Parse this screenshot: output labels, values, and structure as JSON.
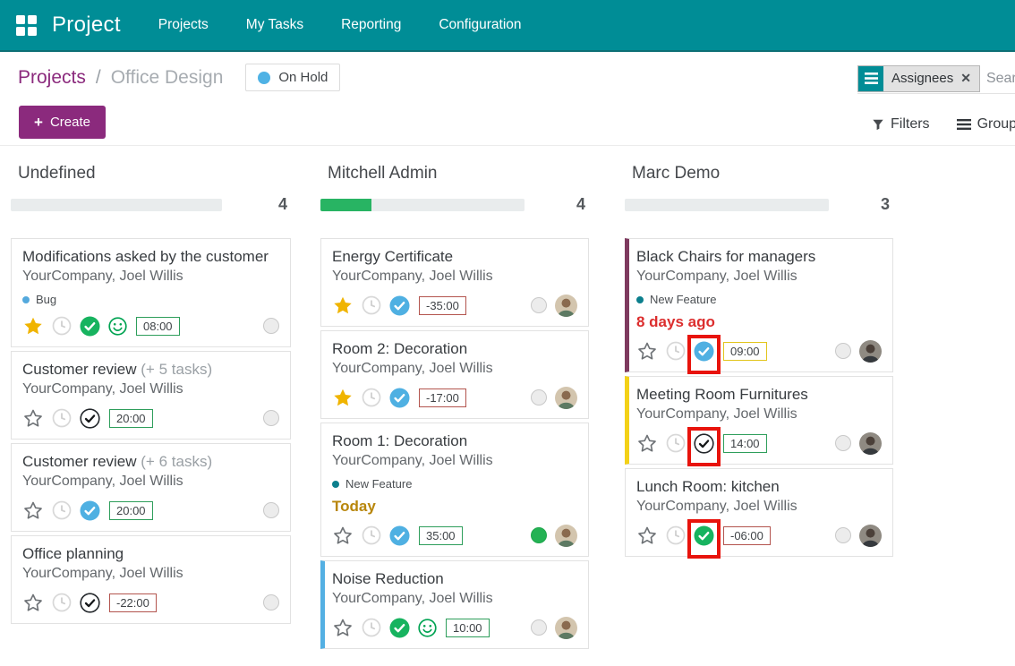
{
  "app": {
    "brand": "Project"
  },
  "nav_items": [
    "Projects",
    "My Tasks",
    "Reporting",
    "Configuration"
  ],
  "breadcrumb": {
    "parent": "Projects",
    "separator": "/",
    "current": "Office Design"
  },
  "status_badge": {
    "label": "On Hold",
    "dot_color": "#4fb2e5"
  },
  "controls": {
    "create": "Create",
    "plus": "+",
    "filters": "Filters",
    "group_by": "Group By",
    "search_facet": "Assignees",
    "facet_close": "✕",
    "search_placeholder": "Search..."
  },
  "columns": [
    {
      "title": "Undefined",
      "count": "4",
      "progress_pct": 0,
      "cards": [
        {
          "title": "Modifications asked by the customer",
          "subtitle": "YourCompany, Joel Willis",
          "tag": {
            "label": "Bug",
            "dot": "#54a9dd"
          },
          "star": "filled",
          "check": "green",
          "smiley": true,
          "time": {
            "value": "08:00",
            "style": "green"
          },
          "state": "gray"
        },
        {
          "title": "Customer review",
          "suffix": "(+ 5 tasks)",
          "subtitle": "YourCompany, Joel Willis",
          "star": "outline",
          "check": "black",
          "time": {
            "value": "20:00",
            "style": "green"
          },
          "state": "gray"
        },
        {
          "title": "Customer review",
          "suffix": "(+ 6 tasks)",
          "subtitle": "YourCompany, Joel Willis",
          "star": "outline",
          "check": "blue",
          "time": {
            "value": "20:00",
            "style": "green"
          },
          "state": "gray"
        },
        {
          "title": "Office planning",
          "subtitle": "YourCompany, Joel Willis",
          "star": "outline",
          "check": "black",
          "time": {
            "value": "-22:00",
            "style": "red"
          },
          "state": "gray"
        }
      ]
    },
    {
      "title": "Mitchell Admin",
      "count": "4",
      "progress_pct": 25,
      "cards": [
        {
          "title": "Energy Certificate",
          "subtitle": "YourCompany, Joel Willis",
          "star": "filled",
          "check": "blue",
          "time": {
            "value": "-35:00",
            "style": "red"
          },
          "state": "gray",
          "avatar": "light"
        },
        {
          "title": "Room 2: Decoration",
          "subtitle": "YourCompany, Joel Willis",
          "star": "filled",
          "check": "blue",
          "time": {
            "value": "-17:00",
            "style": "red"
          },
          "state": "gray",
          "avatar": "light"
        },
        {
          "title": "Room 1: Decoration",
          "subtitle": "YourCompany, Joel Willis",
          "tag": {
            "label": "New Feature",
            "dot": "#0c7f8d"
          },
          "date": {
            "text": "Today",
            "color": "#b8860b"
          },
          "star": "outline",
          "check": "blue",
          "time": {
            "value": "35:00",
            "style": "green"
          },
          "state": "green",
          "avatar": "light"
        },
        {
          "title": "Noise Reduction",
          "subtitle": "YourCompany, Joel Willis",
          "left_border": "#54b0e3",
          "star": "outline",
          "check": "green",
          "smiley": true,
          "time": {
            "value": "10:00",
            "style": "green"
          },
          "state": "gray",
          "avatar": "light"
        }
      ]
    },
    {
      "title": "Marc Demo",
      "count": "3",
      "progress_pct": 0,
      "cards": [
        {
          "title": "Black Chairs for managers",
          "subtitle": "YourCompany, Joel Willis",
          "left_border": "#7e3a5f",
          "tag": {
            "label": "New Feature",
            "dot": "#0c7f8d"
          },
          "date": {
            "text": "8 days ago",
            "color": "#dc2e2e"
          },
          "star": "outline",
          "check": "blue",
          "highlight": true,
          "time": {
            "value": "09:00",
            "style": "yellow"
          },
          "state": "gray",
          "avatar": "dark"
        },
        {
          "title": "Meeting Room Furnitures",
          "subtitle": "YourCompany, Joel Willis",
          "left_border": "#f3d118",
          "star": "outline",
          "check": "black",
          "highlight": true,
          "time": {
            "value": "14:00",
            "style": "green"
          },
          "state": "gray",
          "avatar": "dark"
        },
        {
          "title": "Lunch Room: kitchen",
          "subtitle": "YourCompany, Joel Willis",
          "star": "outline",
          "check": "green",
          "highlight": true,
          "time": {
            "value": "-06:00",
            "style": "red"
          },
          "state": "gray",
          "avatar": "dark"
        }
      ]
    }
  ],
  "colors": {
    "nav_bg": "#008d96",
    "accent_purple": "#8b2a7d",
    "progress_green": "#28b463",
    "time_green_border": "#2e9e5b",
    "time_red_border": "#b3544e",
    "time_yellow_border": "#e2c51c",
    "annotation_red": "#e8130c"
  }
}
